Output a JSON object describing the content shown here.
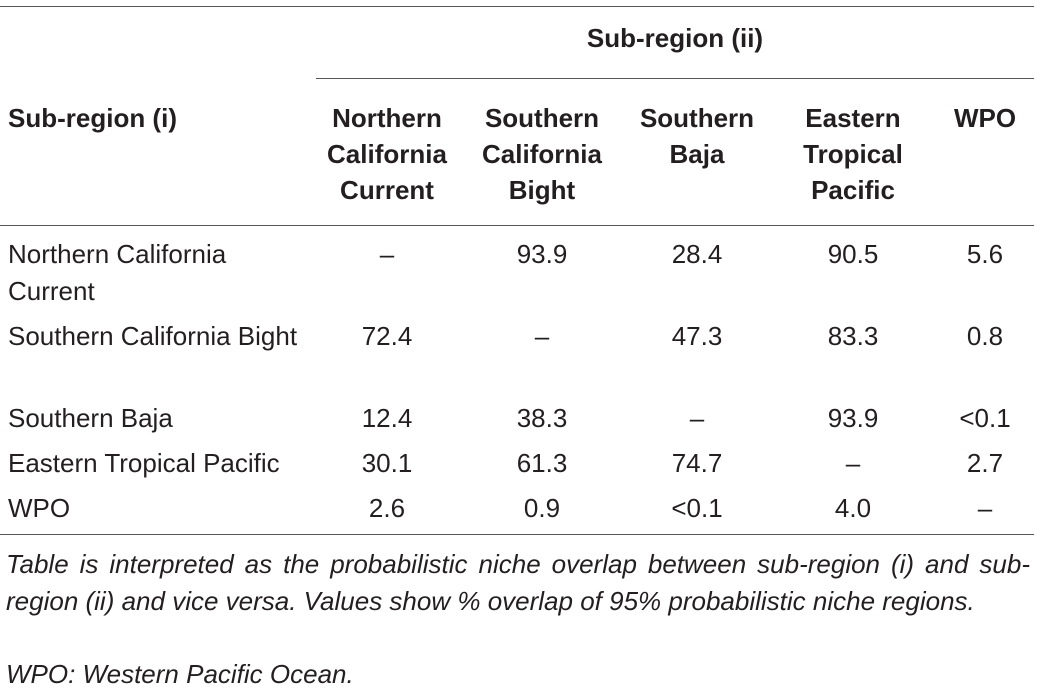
{
  "table": {
    "group_header": "Sub-region (ii)",
    "row_header": "Sub-region (i)",
    "columns": [
      "Northern California Current",
      "Southern California Bight",
      "Southern Baja",
      "Eastern Tropical Pacific",
      "WPO"
    ],
    "rows": [
      {
        "label": "Northern California Current",
        "cells": [
          "–",
          "93.9",
          "28.4",
          "90.5",
          "5.6"
        ]
      },
      {
        "label": "Southern California Bight",
        "cells": [
          "72.4",
          "–",
          "47.3",
          "83.3",
          "0.8"
        ]
      },
      {
        "label": "Southern Baja",
        "cells": [
          "12.4",
          "38.3",
          "–",
          "93.9",
          "<0.1"
        ]
      },
      {
        "label": "Eastern Tropical Pacific",
        "cells": [
          "30.1",
          "61.3",
          "74.7",
          "–",
          "2.7"
        ]
      },
      {
        "label": "WPO",
        "cells": [
          "2.6",
          "0.9",
          "<0.1",
          "4.0",
          "–"
        ]
      }
    ]
  },
  "footnotes": [
    "Table is interpreted as the probabilistic niche overlap between sub-region (i) and sub-region (ii) and vice versa. Values show % overlap of 95% probabilistic niche regions.",
    "WPO: Western Pacific Ocean."
  ]
}
